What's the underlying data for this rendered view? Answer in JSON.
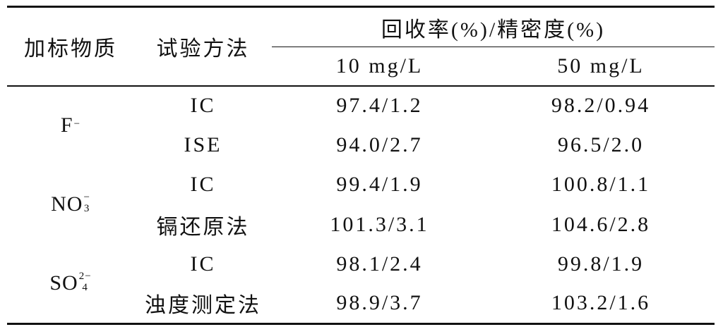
{
  "table": {
    "header": {
      "substance": "加标物质",
      "method": "试验方法",
      "group": "回收率(%)/精密度(%)",
      "columns": [
        "10 mg/L",
        "50 mg/L"
      ]
    },
    "groups": [
      {
        "ion": {
          "base": "F",
          "sup": "−"
        },
        "rows": [
          {
            "method": "IC",
            "values": [
              "97.4/1.2",
              "98.2/0.94"
            ]
          },
          {
            "method": "ISE",
            "values": [
              "94.0/2.7",
              "96.5/2.0"
            ]
          }
        ]
      },
      {
        "ion": {
          "base": "NO",
          "sub": "3",
          "sup": "−"
        },
        "rows": [
          {
            "method": "IC",
            "values": [
              "99.4/1.9",
              "100.8/1.1"
            ]
          },
          {
            "method": "镉还原法",
            "values": [
              "101.3/3.1",
              "104.6/2.8"
            ]
          }
        ]
      },
      {
        "ion": {
          "base": "SO",
          "sub": "4",
          "sup": "2−"
        },
        "rows": [
          {
            "method": "IC",
            "values": [
              "98.1/2.4",
              "99.8/1.9"
            ]
          },
          {
            "method": "浊度测定法",
            "values": [
              "98.9/3.7",
              "103.2/1.6"
            ]
          }
        ]
      }
    ]
  }
}
